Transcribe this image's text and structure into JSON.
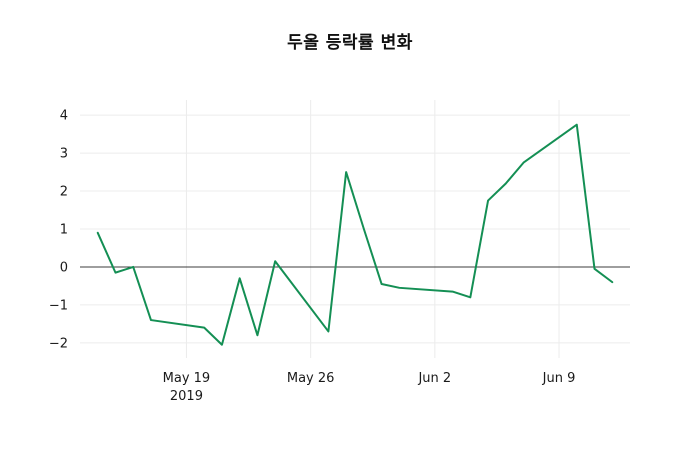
{
  "chart_data": {
    "type": "line",
    "title": "두올 등락률 변화",
    "xlabel": "",
    "ylabel": "",
    "grid": true,
    "legend": "none",
    "zero_line": true,
    "xlim": [
      "2019-05-13",
      "2019-06-13"
    ],
    "ylim": [
      -2.4,
      4.4
    ],
    "y_ticks": [
      -2,
      -1,
      0,
      1,
      2,
      3,
      4
    ],
    "x_ticks": [
      {
        "date": "2019-05-19",
        "label": "May 19",
        "sublabel": "2019"
      },
      {
        "date": "2019-05-26",
        "label": "May 26",
        "sublabel": ""
      },
      {
        "date": "2019-06-02",
        "label": "Jun 2",
        "sublabel": ""
      },
      {
        "date": "2019-06-09",
        "label": "Jun 9",
        "sublabel": ""
      }
    ],
    "series": [
      {
        "name": "두올 등락률",
        "color": "#148f54",
        "x": [
          "2019-05-14",
          "2019-05-15",
          "2019-05-16",
          "2019-05-17",
          "2019-05-20",
          "2019-05-21",
          "2019-05-22",
          "2019-05-23",
          "2019-05-24",
          "2019-05-27",
          "2019-05-28",
          "2019-05-29",
          "2019-05-30",
          "2019-05-31",
          "2019-06-03",
          "2019-06-04",
          "2019-06-05",
          "2019-06-06",
          "2019-06-07",
          "2019-06-10",
          "2019-06-11",
          "2019-06-12"
        ],
        "values": [
          0.9,
          -0.15,
          0.0,
          -1.4,
          -1.6,
          -2.05,
          -0.3,
          -1.8,
          0.15,
          -1.7,
          2.5,
          1.0,
          -0.45,
          -0.55,
          -0.65,
          -0.8,
          1.75,
          2.2,
          2.75,
          3.75,
          -0.05,
          -0.4
        ]
      }
    ]
  },
  "colors": {
    "line": "#148f54",
    "grid": "#ececec",
    "zero_line": "#3c3c3c",
    "tick_text": "#1a1a1a",
    "background": "#ffffff"
  }
}
